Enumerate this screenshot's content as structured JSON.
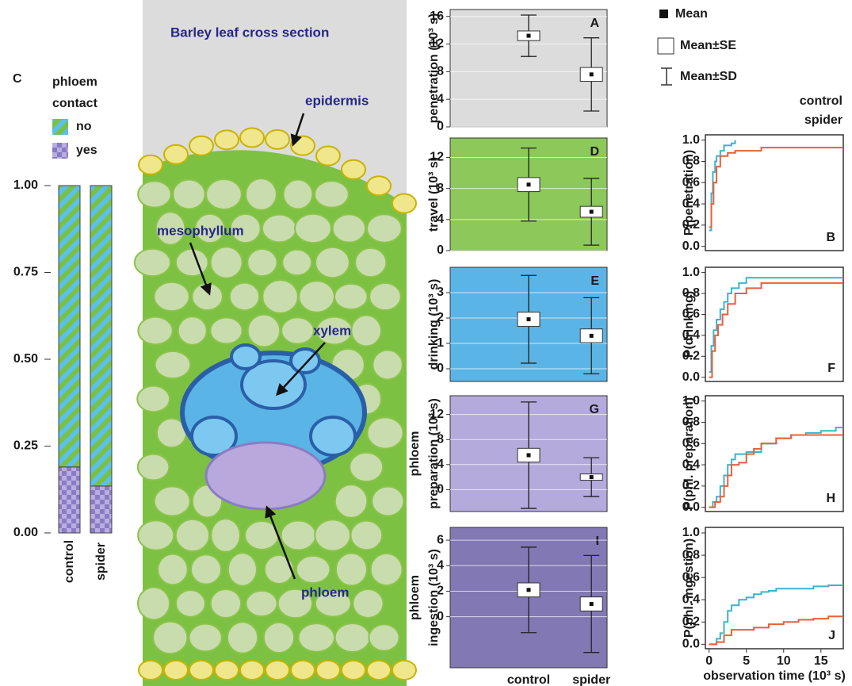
{
  "chart_data": [
    {
      "type": "stacked_bar",
      "panel": "C",
      "legend_title": [
        "phloem",
        "contact"
      ],
      "categories": [
        "control",
        "spider"
      ],
      "ylim": [
        0,
        1
      ],
      "yticks": [
        {
          "value": 0,
          "label": "0.00"
        },
        {
          "value": 0.25,
          "label": "0.25"
        },
        {
          "value": 0.5,
          "label": "0.50"
        },
        {
          "value": 0.75,
          "label": "0.75"
        },
        {
          "value": 1,
          "label": "1.00"
        }
      ],
      "series": [
        {
          "name": "yes",
          "colors": [
            "#8a7cc4",
            "#b9aee0"
          ],
          "values": [
            0.19,
            0.135
          ]
        },
        {
          "name": "no",
          "colors": [
            "#7ac143",
            "#5bc0eb"
          ],
          "values": [
            0.81,
            0.865
          ]
        }
      ]
    },
    {
      "type": "box",
      "panel": "A",
      "ylabel": [
        "penetration (10³ s)"
      ],
      "background": "#dcdcdc",
      "grid": true,
      "ylim": [
        0,
        17
      ],
      "yticks": [
        0,
        4,
        8,
        12,
        16
      ],
      "mean": [
        13.2,
        7.6
      ],
      "se": [
        0.7,
        1.0
      ],
      "sd": [
        3.0,
        5.3
      ]
    },
    {
      "type": "box",
      "panel": "D",
      "ylabel": [
        "travel (10³ s)"
      ],
      "background": "#8cc85a",
      "grid": true,
      "ylim": [
        0,
        14.5
      ],
      "yticks": [
        0,
        4,
        8,
        12
      ],
      "mean": [
        8.5,
        5.0
      ],
      "se": [
        0.9,
        0.7
      ],
      "sd": [
        4.7,
        4.3
      ]
    },
    {
      "type": "box",
      "panel": "E",
      "ylabel": [
        "drinking (10³ s)"
      ],
      "background": "#5ab4e6",
      "grid": true,
      "ylim": [
        -0.5,
        4
      ],
      "yticks": [
        0,
        1,
        2,
        3
      ],
      "mean": [
        1.95,
        1.3
      ],
      "se": [
        0.28,
        0.27
      ],
      "sd": [
        1.73,
        1.5
      ]
    },
    {
      "type": "box",
      "panel": "G",
      "ylabel": [
        "phloem",
        "preparation (10³ s)"
      ],
      "background": "#b4aadc",
      "grid": true,
      "ylim": [
        -3.5,
        15
      ],
      "yticks": [
        0,
        4,
        8,
        12
      ],
      "mean": [
        5.5,
        2.0
      ],
      "se": [
        1.1,
        0.5
      ],
      "sd": [
        8.5,
        3.1
      ]
    },
    {
      "type": "box",
      "panel": "I",
      "ylabel": [
        "phloem",
        "ingestion (10³ s)"
      ],
      "background": "#8278b4",
      "grid": true,
      "ylim": [
        -4,
        7
      ],
      "yticks": [
        0,
        2,
        4,
        6
      ],
      "categories": [
        "control",
        "spider"
      ],
      "mean": [
        2.1,
        1.0
      ],
      "se": [
        0.55,
        0.55
      ],
      "sd": [
        3.35,
        3.8
      ]
    },
    {
      "type": "step",
      "panel": "B",
      "ylabel": "P(penetration)",
      "xlim": [
        -0.5,
        18
      ],
      "ylim": [
        -0.04,
        1.05
      ],
      "yticks": [
        {
          "value": 0,
          "label": "0.0"
        },
        0.2,
        0.4,
        0.6,
        0.8,
        {
          "value": 1,
          "label": "1.0"
        }
      ],
      "series": [
        {
          "name": "control",
          "color": "#3cb4cc",
          "x": [
            0,
            0.3,
            0.5,
            0.8,
            1.0,
            1.5,
            2.0,
            3.0,
            3.5
          ],
          "values": [
            0.15,
            0.5,
            0.7,
            0.8,
            0.85,
            0.9,
            0.95,
            0.97,
            1.0
          ]
        },
        {
          "name": "spider",
          "color": "#e8603c",
          "x": [
            0,
            0.3,
            0.6,
            1.0,
            1.5,
            2.5,
            3.5,
            7,
            18
          ],
          "values": [
            0.18,
            0.4,
            0.6,
            0.75,
            0.85,
            0.88,
            0.9,
            0.93,
            0.93
          ]
        }
      ]
    },
    {
      "type": "step",
      "panel": "F",
      "ylabel": "P(drinking)",
      "xlim": [
        -0.5,
        18
      ],
      "ylim": [
        -0.04,
        1.05
      ],
      "yticks": [
        {
          "value": 0,
          "label": "0.0"
        },
        0.2,
        0.4,
        0.6,
        0.8,
        {
          "value": 1,
          "label": "1.0"
        }
      ],
      "series": [
        {
          "color": "#3cb4cc",
          "x": [
            0,
            0.3,
            0.6,
            1,
            1.5,
            2,
            2.5,
            3,
            4,
            5,
            18
          ],
          "values": [
            0.05,
            0.3,
            0.45,
            0.55,
            0.65,
            0.72,
            0.8,
            0.85,
            0.9,
            0.95,
            0.95
          ]
        },
        {
          "color": "#e8603c",
          "x": [
            0,
            0.4,
            0.8,
            1.2,
            1.8,
            2.5,
            3.5,
            5,
            7,
            18
          ],
          "values": [
            0,
            0.25,
            0.4,
            0.5,
            0.6,
            0.7,
            0.8,
            0.85,
            0.9,
            0.9
          ]
        }
      ]
    },
    {
      "type": "step",
      "panel": "H",
      "ylabel": "P(phl. preparation)",
      "xlim": [
        -0.5,
        18
      ],
      "ylim": [
        -0.04,
        1.05
      ],
      "yticks": [
        {
          "value": 0,
          "label": "0.0"
        },
        0.2,
        0.4,
        0.6,
        0.8,
        {
          "value": 1,
          "label": "1.0"
        }
      ],
      "series": [
        {
          "color": "#3cb4cc",
          "x": [
            0,
            0.5,
            1,
            1.5,
            2,
            2.5,
            3,
            3.5,
            5,
            7,
            9,
            11,
            13,
            15,
            17,
            18
          ],
          "values": [
            0,
            0.05,
            0.1,
            0.2,
            0.3,
            0.4,
            0.45,
            0.5,
            0.52,
            0.6,
            0.65,
            0.68,
            0.7,
            0.72,
            0.75,
            0.75
          ]
        },
        {
          "color": "#e8603c",
          "x": [
            0,
            0.8,
            1.5,
            2,
            2.5,
            3,
            4,
            5,
            6,
            7,
            9,
            11,
            18
          ],
          "values": [
            0,
            0.05,
            0.1,
            0.2,
            0.3,
            0.4,
            0.42,
            0.5,
            0.55,
            0.6,
            0.65,
            0.68,
            0.68
          ]
        }
      ]
    },
    {
      "type": "step",
      "panel": "J",
      "ylabel": "P(phl. ingestion)",
      "xlabel": "observation time (10³ s)",
      "xlim": [
        -0.5,
        18
      ],
      "ylim": [
        -0.04,
        1.05
      ],
      "xticks": [
        0,
        5,
        10,
        15
      ],
      "yticks": [
        {
          "value": 0,
          "label": "0.0"
        },
        0.2,
        0.4,
        0.6,
        0.8,
        {
          "value": 1,
          "label": "1.0"
        }
      ],
      "series": [
        {
          "color": "#3cb4cc",
          "x": [
            0,
            1,
            1.5,
            2,
            2.5,
            3,
            4,
            5,
            6,
            7,
            8,
            9,
            14,
            16,
            18
          ],
          "values": [
            0,
            0.05,
            0.1,
            0.2,
            0.3,
            0.35,
            0.4,
            0.42,
            0.45,
            0.47,
            0.48,
            0.5,
            0.52,
            0.53,
            0.53
          ]
        },
        {
          "color": "#e8603c",
          "x": [
            0,
            1,
            2,
            3,
            6,
            8,
            10,
            12,
            14,
            16,
            18
          ],
          "values": [
            0,
            0.02,
            0.08,
            0.13,
            0.15,
            0.18,
            0.2,
            0.22,
            0.23,
            0.25,
            0.25
          ]
        }
      ]
    }
  ],
  "legend": {
    "mean": "Mean",
    "se": "Mean±SE",
    "sd": "Mean±SD"
  },
  "diagram": {
    "title": "Barley leaf cross section",
    "epidermis": "epidermis",
    "mesophyllum": "mesophyllum",
    "xylem": "xylem",
    "phloem": "phloem"
  }
}
